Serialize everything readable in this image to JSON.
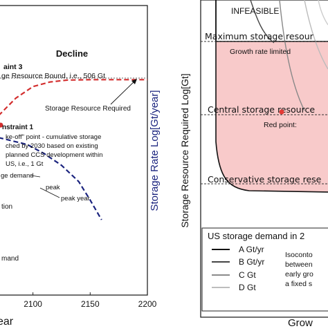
{
  "chart_data": [
    {
      "type": "line",
      "panel": "left",
      "title": "Decline",
      "xlabel": "ear",
      "ylabel": "Storage Rate Log[Gt/year]",
      "xlim": [
        2070,
        2200
      ],
      "x_ticks": [
        "2100",
        "2150",
        "2200"
      ],
      "ylabel_color": "#1a237e",
      "series": [
        {
          "name": "Storage Resource Required",
          "color": "#d32f2f",
          "style": "dashed",
          "x": [
            2070,
            2085,
            2100,
            2115,
            2130,
            2150,
            2200
          ],
          "y": [
            0.55,
            0.7,
            0.8,
            0.84,
            0.856,
            0.86,
            0.86
          ]
        },
        {
          "name": "storage demand",
          "color": "#1a237e",
          "style": "dashed",
          "x": [
            2070,
            2095,
            2110,
            2125,
            2140,
            2150,
            2160
          ],
          "y": [
            0.36,
            0.3,
            0.22,
            0.12,
            -0.02,
            -0.18,
            -0.35
          ]
        }
      ],
      "annotations": {
        "constraint3_title": "aint 3",
        "constraint3_text": "ge Resource Bound, i.e., 506 Gt",
        "storage_required": "Storage Resource Required",
        "constraint1_title": "nstraint 1",
        "constraint1_lines": [
          "ke-off\" point - cumulative storage",
          "ched by 2030 based on existing",
          "planned CCS development within",
          "US, i.e., 1 Gt"
        ],
        "storage_demand_label": "ge demand",
        "peak_year": "peak year",
        "tion": "tion",
        "mand": "mand"
      }
    },
    {
      "type": "area",
      "panel": "right",
      "ylabel": "Storage Resource Required Log[Gt]",
      "xlabel": "Grow",
      "region_color": "#f8caca",
      "labels": {
        "infeasible": "INFEASIBLE",
        "max_storage": "Maximum storage resour",
        "growth_limited": "Growth rate limited",
        "central_storage": "Central storage resource",
        "red_point": "Red point:",
        "conservative": "Conservative storage rese"
      },
      "legend": {
        "title": "US storage demand in 2",
        "entries": [
          {
            "label": "A Gt/yr",
            "color": "#111111"
          },
          {
            "label": "B Gt/yr",
            "color": "#444444"
          },
          {
            "label": "C Gt",
            "color": "#8a8a8a"
          },
          {
            "label": "D Gt",
            "color": "#bdbdbd"
          }
        ],
        "note_lines": [
          "Isoconto",
          "between",
          "early gro",
          "a fixed s"
        ]
      }
    }
  ]
}
